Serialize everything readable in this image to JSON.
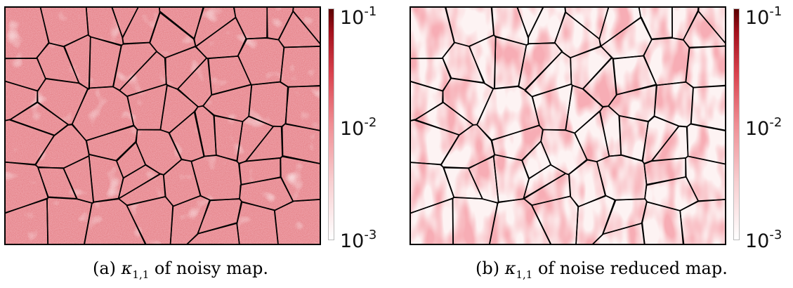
{
  "figure": {
    "panels": [
      {
        "id": "a",
        "colorbar": {
          "ticks": [
            {
              "base": "10",
              "exp": "-1"
            },
            {
              "base": "10",
              "exp": "-2"
            },
            {
              "base": "10",
              "exp": "-3"
            }
          ],
          "scale": "log",
          "colors": [
            "#ffffff",
            "#f08e94",
            "#5a0000"
          ]
        },
        "caption": {
          "prefix": "(a) ",
          "symbol": "κ",
          "subscript": "1,1",
          "suffix": " of noisy map."
        }
      },
      {
        "id": "b",
        "colorbar": {
          "ticks": [
            {
              "base": "10",
              "exp": "-1"
            },
            {
              "base": "10",
              "exp": "-2"
            },
            {
              "base": "10",
              "exp": "-3"
            }
          ],
          "scale": "log",
          "colors": [
            "#ffffff",
            "#f08e94",
            "#5a0000"
          ]
        },
        "caption": {
          "prefix": "(b) ",
          "symbol": "κ",
          "subscript": "1,1",
          "suffix": " of noise reduced map."
        }
      }
    ],
    "boundary_color": "#000000",
    "noisy_fill_color": "#e27a80",
    "smooth_fill_color": "#f4b3b6"
  }
}
